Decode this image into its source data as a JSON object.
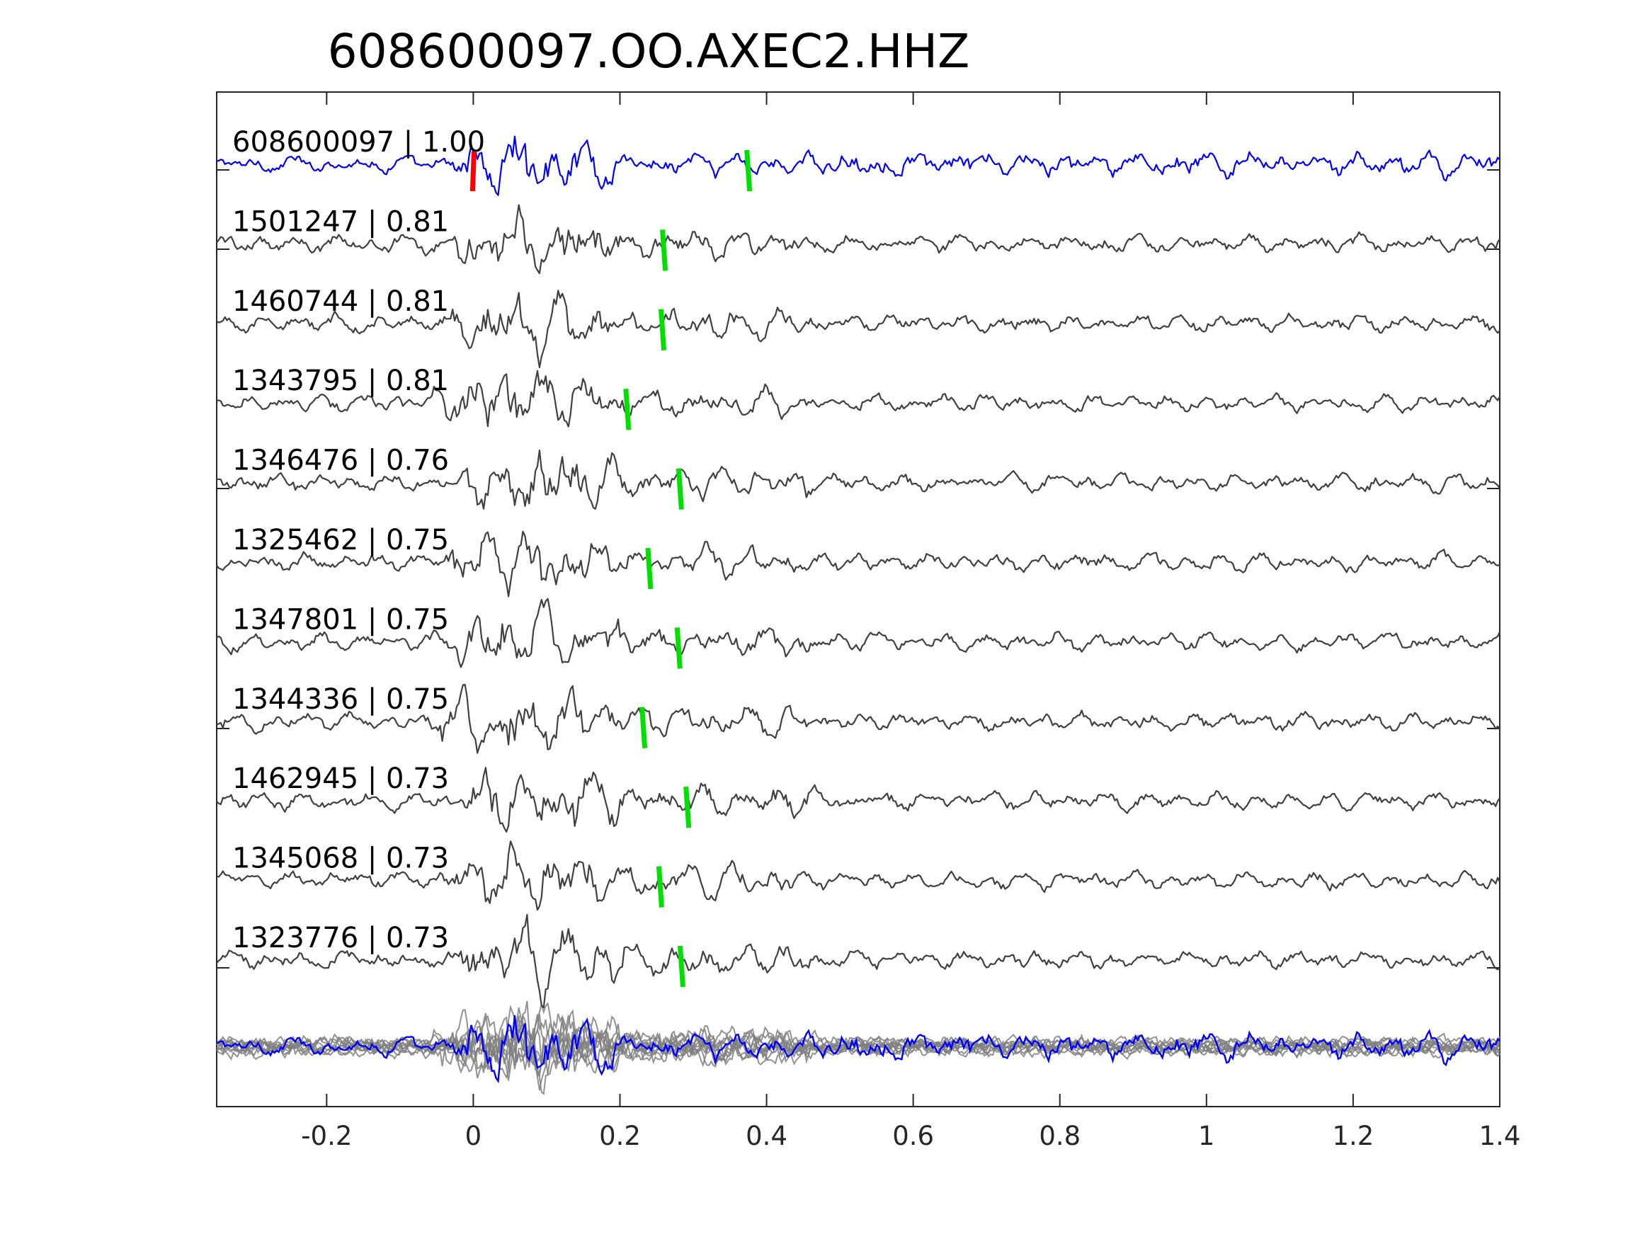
{
  "chart_data": {
    "type": "line",
    "title": "608600097.OO.AXEC2.HHZ",
    "xlabel": "",
    "ylabel": "",
    "xlim": [
      -0.35,
      1.4
    ],
    "x_ticks": [
      "-0.2",
      "0",
      "0.2",
      "0.4",
      "0.6",
      "0.8",
      "1",
      "1.2",
      "1.4"
    ],
    "x_tick_values": [
      -0.2,
      0,
      0.2,
      0.4,
      0.6,
      0.8,
      1,
      1.2,
      1.4
    ],
    "grid": false,
    "legend": "none",
    "colors": {
      "target": "#0000ff",
      "template": "#404040",
      "stack": "#7f7f7f",
      "origin_pick": "#ff0000",
      "s_pick": "#00e000",
      "axes": "#262626"
    },
    "origin_pick_time": 0.0,
    "traces": [
      {
        "id": "608600097",
        "cc": "1.00",
        "label": "608600097 | 1.00",
        "pick_time": 0.375,
        "target": true
      },
      {
        "id": "1501247",
        "cc": "0.81",
        "label": "1501247 | 0.81",
        "pick_time": 0.26
      },
      {
        "id": "1460744",
        "cc": "0.81",
        "label": "1460744 | 0.81",
        "pick_time": 0.258
      },
      {
        "id": "1343795",
        "cc": "0.81",
        "label": "1343795 | 0.81",
        "pick_time": 0.21
      },
      {
        "id": "1346476",
        "cc": "0.76",
        "label": "1346476 | 0.76",
        "pick_time": 0.282
      },
      {
        "id": "1325462",
        "cc": "0.75",
        "label": "1325462 | 0.75",
        "pick_time": 0.24
      },
      {
        "id": "1347801",
        "cc": "0.75",
        "label": "1347801 | 0.75",
        "pick_time": 0.28
      },
      {
        "id": "1344336",
        "cc": "0.75",
        "label": "1344336 | 0.75",
        "pick_time": 0.232
      },
      {
        "id": "1462945",
        "cc": "0.73",
        "label": "1462945 | 0.73",
        "pick_time": 0.292
      },
      {
        "id": "1345068",
        "cc": "0.73",
        "label": "1345068 | 0.73",
        "pick_time": 0.255
      },
      {
        "id": "1323776",
        "cc": "0.73",
        "label": "1323776 | 0.73",
        "pick_time": 0.284
      }
    ]
  }
}
